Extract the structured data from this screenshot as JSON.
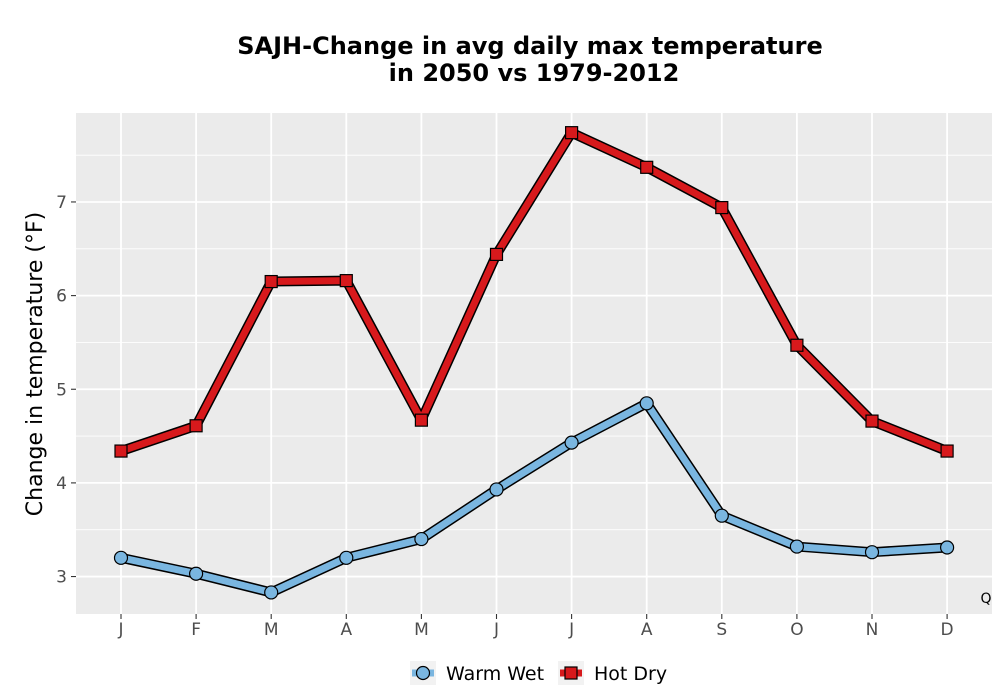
{
  "chart_data": {
    "type": "line",
    "title_lines": [
      "SAJH-Change in avg daily max temperature",
      "in 2050 vs 1979-2012"
    ],
    "xlabel": "",
    "ylabel": "Change in temperature (°F)",
    "categories": [
      "J",
      "F",
      "M",
      "A",
      "M",
      "J",
      "J",
      "A",
      "S",
      "O",
      "N",
      "D"
    ],
    "y_ticks": [
      3,
      4,
      5,
      6,
      7
    ],
    "ylim": [
      2.6,
      7.95
    ],
    "grid": true,
    "legend_position": "bottom",
    "annotation": "Q",
    "series": [
      {
        "name": "Warm Wet",
        "color": "#7ab6e0",
        "marker": "circle",
        "values": [
          3.2,
          3.03,
          2.83,
          3.2,
          3.4,
          3.93,
          4.43,
          4.85,
          3.65,
          3.32,
          3.26,
          3.31
        ]
      },
      {
        "name": "Hot Dry",
        "color": "#d7191c",
        "marker": "square",
        "values": [
          4.34,
          4.61,
          6.15,
          6.16,
          4.67,
          6.44,
          7.74,
          7.37,
          6.94,
          5.47,
          4.66,
          4.34
        ]
      }
    ]
  }
}
